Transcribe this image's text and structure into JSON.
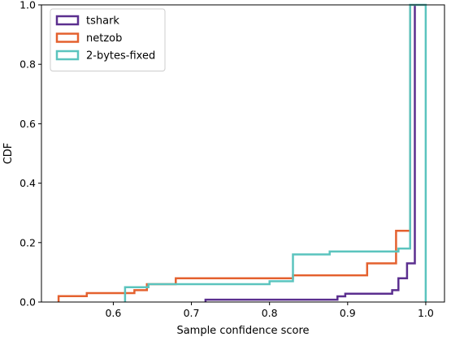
{
  "chart_data": {
    "type": "line",
    "subtype": "step-cdf",
    "title": "",
    "xlabel": "Sample confidence score",
    "ylabel": "CDF",
    "xlim": [
      0.508,
      1.024
    ],
    "ylim": [
      0.0,
      1.0
    ],
    "x_ticks": [
      0.6,
      0.7,
      0.8,
      0.9,
      1.0
    ],
    "x_tick_labels": [
      "0.6",
      "0.7",
      "0.8",
      "0.9",
      "1.0"
    ],
    "y_ticks": [
      0.0,
      0.2,
      0.4,
      0.6,
      0.8,
      1.0
    ],
    "y_tick_labels": [
      "0.0",
      "0.2",
      "0.4",
      "0.6",
      "0.8",
      "1.0"
    ],
    "grid": false,
    "legend_position": "top-left",
    "series": [
      {
        "name": "tshark",
        "color": "#5b2f8f",
        "points": [
          [
            0.718,
            0.0
          ],
          [
            0.718,
            0.008
          ],
          [
            0.887,
            0.008
          ],
          [
            0.887,
            0.019
          ],
          [
            0.897,
            0.019
          ],
          [
            0.897,
            0.028
          ],
          [
            0.957,
            0.028
          ],
          [
            0.957,
            0.04
          ],
          [
            0.965,
            0.04
          ],
          [
            0.965,
            0.08
          ],
          [
            0.976,
            0.08
          ],
          [
            0.976,
            0.13
          ],
          [
            0.986,
            0.13
          ],
          [
            0.986,
            1.0
          ]
        ]
      },
      {
        "name": "netzob",
        "color": "#e4612f",
        "points": [
          [
            0.53,
            0.0
          ],
          [
            0.53,
            0.02
          ],
          [
            0.566,
            0.02
          ],
          [
            0.566,
            0.03
          ],
          [
            0.627,
            0.03
          ],
          [
            0.627,
            0.04
          ],
          [
            0.643,
            0.04
          ],
          [
            0.643,
            0.06
          ],
          [
            0.68,
            0.06
          ],
          [
            0.68,
            0.08
          ],
          [
            0.83,
            0.08
          ],
          [
            0.83,
            0.09
          ],
          [
            0.925,
            0.09
          ],
          [
            0.925,
            0.13
          ],
          [
            0.962,
            0.13
          ],
          [
            0.962,
            0.24
          ],
          [
            0.98,
            0.24
          ],
          [
            0.98,
            1.0
          ]
        ]
      },
      {
        "name": "2-bytes-fixed",
        "color": "#5bc4be",
        "points": [
          [
            0.615,
            0.0
          ],
          [
            0.615,
            0.05
          ],
          [
            0.645,
            0.05
          ],
          [
            0.645,
            0.06
          ],
          [
            0.8,
            0.06
          ],
          [
            0.8,
            0.07
          ],
          [
            0.83,
            0.07
          ],
          [
            0.83,
            0.16
          ],
          [
            0.877,
            0.16
          ],
          [
            0.877,
            0.17
          ],
          [
            0.965,
            0.17
          ],
          [
            0.965,
            0.18
          ],
          [
            0.98,
            0.18
          ],
          [
            0.98,
            1.0
          ],
          [
            1.0,
            1.0
          ],
          [
            1.0,
            0.0
          ]
        ]
      }
    ]
  }
}
